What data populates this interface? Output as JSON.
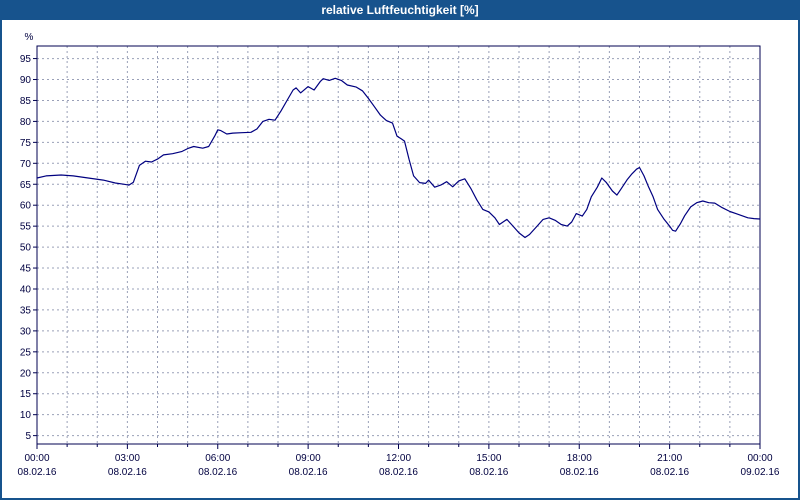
{
  "title": "relative Luftfeuchtigkeit [%]",
  "colors": {
    "titlebar": "#17538D",
    "axis": "#000050",
    "grid": "#9aa0b8",
    "line": "#000080",
    "label": "#000040",
    "plot_bg": "#ffffff"
  },
  "chart_data": {
    "type": "line",
    "title": "relative Luftfeuchtigkeit [%]",
    "ylabel": "%",
    "xlabel": "",
    "ymin": 3,
    "ymax": 98,
    "ylim": [
      0,
      100
    ],
    "grid": {
      "x_interval_hours": 1,
      "y_interval": 5,
      "style": "dashed"
    },
    "legend": "none",
    "yticks": [
      5,
      10,
      15,
      20,
      25,
      30,
      35,
      40,
      45,
      50,
      55,
      60,
      65,
      70,
      75,
      80,
      85,
      90,
      95
    ],
    "xticks": [
      {
        "hour": 0,
        "time": "00:00",
        "date": "08.02.16"
      },
      {
        "hour": 3,
        "time": "03:00",
        "date": "08.02.16"
      },
      {
        "hour": 6,
        "time": "06:00",
        "date": "08.02.16"
      },
      {
        "hour": 9,
        "time": "09:00",
        "date": "08.02.16"
      },
      {
        "hour": 12,
        "time": "12:00",
        "date": "08.02.16"
      },
      {
        "hour": 15,
        "time": "15:00",
        "date": "08.02.16"
      },
      {
        "hour": 18,
        "time": "18:00",
        "date": "08.02.16"
      },
      {
        "hour": 21,
        "time": "21:00",
        "date": "08.02.16"
      },
      {
        "hour": 24,
        "time": "00:00",
        "date": "09.02.16"
      }
    ],
    "series": [
      {
        "name": "relative-luftfeuchtigkeit",
        "color": "#000080",
        "points": [
          [
            0.0,
            66.5
          ],
          [
            0.3,
            67
          ],
          [
            0.8,
            67.2
          ],
          [
            1.2,
            67
          ],
          [
            1.7,
            66.5
          ],
          [
            2.2,
            66
          ],
          [
            2.6,
            65.3
          ],
          [
            2.9,
            65
          ],
          [
            3.05,
            64.8
          ],
          [
            3.2,
            65.5
          ],
          [
            3.4,
            69.5
          ],
          [
            3.6,
            70.5
          ],
          [
            3.8,
            70.3
          ],
          [
            4.0,
            71
          ],
          [
            4.2,
            72
          ],
          [
            4.5,
            72.3
          ],
          [
            4.8,
            72.8
          ],
          [
            5.0,
            73.5
          ],
          [
            5.2,
            74
          ],
          [
            5.5,
            73.6
          ],
          [
            5.7,
            74
          ],
          [
            5.9,
            76.5
          ],
          [
            6.0,
            78
          ],
          [
            6.1,
            77.8
          ],
          [
            6.3,
            77
          ],
          [
            6.5,
            77.2
          ],
          [
            6.8,
            77.3
          ],
          [
            7.1,
            77.4
          ],
          [
            7.3,
            78.2
          ],
          [
            7.5,
            80
          ],
          [
            7.7,
            80.5
          ],
          [
            7.9,
            80.3
          ],
          [
            8.1,
            82.5
          ],
          [
            8.3,
            85
          ],
          [
            8.5,
            87.5
          ],
          [
            8.6,
            88
          ],
          [
            8.75,
            86.8
          ],
          [
            9.0,
            88.3
          ],
          [
            9.2,
            87.5
          ],
          [
            9.4,
            89.5
          ],
          [
            9.5,
            90.2
          ],
          [
            9.7,
            89.8
          ],
          [
            9.9,
            90.3
          ],
          [
            10.1,
            89.8
          ],
          [
            10.3,
            88.7
          ],
          [
            10.6,
            88.2
          ],
          [
            10.8,
            87.3
          ],
          [
            11.0,
            85.5
          ],
          [
            11.2,
            83.5
          ],
          [
            11.4,
            81.5
          ],
          [
            11.6,
            80.2
          ],
          [
            11.8,
            79.6
          ],
          [
            11.95,
            76.5
          ],
          [
            12.1,
            75.8
          ],
          [
            12.2,
            75.3
          ],
          [
            12.35,
            71
          ],
          [
            12.5,
            67
          ],
          [
            12.7,
            65.4
          ],
          [
            12.9,
            65.2
          ],
          [
            13.0,
            66
          ],
          [
            13.2,
            64.3
          ],
          [
            13.4,
            64.8
          ],
          [
            13.6,
            65.6
          ],
          [
            13.8,
            64.4
          ],
          [
            14.0,
            65.8
          ],
          [
            14.2,
            66.3
          ],
          [
            14.4,
            64
          ],
          [
            14.6,
            61.3
          ],
          [
            14.8,
            59
          ],
          [
            15.0,
            58.4
          ],
          [
            15.2,
            57
          ],
          [
            15.35,
            55.4
          ],
          [
            15.6,
            56.6
          ],
          [
            15.8,
            55
          ],
          [
            16.0,
            53.4
          ],
          [
            16.2,
            52.3
          ],
          [
            16.35,
            53
          ],
          [
            16.6,
            55
          ],
          [
            16.8,
            56.6
          ],
          [
            17.0,
            57
          ],
          [
            17.2,
            56.4
          ],
          [
            17.4,
            55.4
          ],
          [
            17.6,
            55
          ],
          [
            17.75,
            56
          ],
          [
            17.9,
            58
          ],
          [
            18.1,
            57.4
          ],
          [
            18.25,
            59
          ],
          [
            18.4,
            62
          ],
          [
            18.6,
            64.3
          ],
          [
            18.75,
            66.5
          ],
          [
            18.9,
            65.4
          ],
          [
            19.1,
            63.4
          ],
          [
            19.25,
            62.4
          ],
          [
            19.4,
            64
          ],
          [
            19.6,
            66.2
          ],
          [
            19.75,
            67.5
          ],
          [
            19.9,
            68.6
          ],
          [
            20.0,
            69
          ],
          [
            20.15,
            67
          ],
          [
            20.3,
            64.4
          ],
          [
            20.45,
            62
          ],
          [
            20.6,
            59
          ],
          [
            20.8,
            56.8
          ],
          [
            21.0,
            55
          ],
          [
            21.1,
            54
          ],
          [
            21.2,
            53.8
          ],
          [
            21.35,
            55.5
          ],
          [
            21.5,
            57.5
          ],
          [
            21.7,
            59.6
          ],
          [
            21.9,
            60.6
          ],
          [
            22.1,
            61
          ],
          [
            22.3,
            60.6
          ],
          [
            22.5,
            60.5
          ],
          [
            22.75,
            59.4
          ],
          [
            23.0,
            58.5
          ],
          [
            23.2,
            58
          ],
          [
            23.4,
            57.5
          ],
          [
            23.6,
            57
          ],
          [
            23.8,
            56.8
          ],
          [
            24.0,
            56.7
          ]
        ]
      }
    ]
  }
}
